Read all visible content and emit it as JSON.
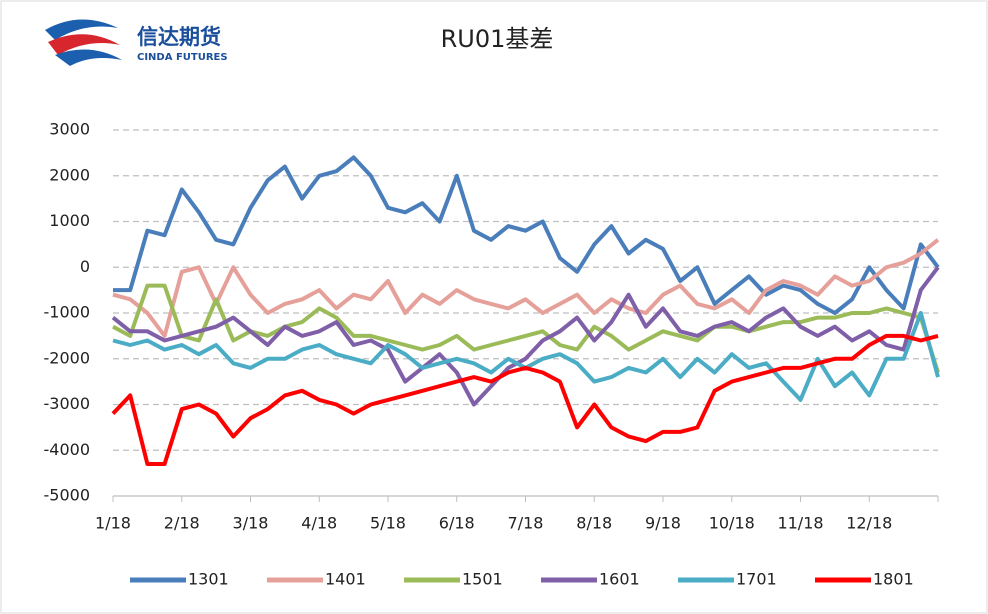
{
  "logo": {
    "name": "信达期货",
    "english": "CINDA FUTURES"
  },
  "chart_data": {
    "type": "line",
    "title": "RU01基差",
    "categories": [
      "1/18",
      null,
      null,
      null,
      "2/18",
      null,
      null,
      null,
      "3/18",
      null,
      null,
      null,
      "4/18",
      null,
      null,
      null,
      "5/18",
      null,
      null,
      null,
      "6/18",
      null,
      null,
      null,
      "7/18",
      null,
      null,
      null,
      "8/18",
      null,
      null,
      null,
      "9/18",
      null,
      null,
      null,
      "10/18",
      null,
      null,
      null,
      "11/18",
      null,
      null,
      null,
      "12/18",
      null,
      null,
      null,
      null
    ],
    "ylim": [
      -5000,
      3000
    ],
    "yticks": [
      -5000,
      -4000,
      -3000,
      -2000,
      -1000,
      0,
      1000,
      2000,
      3000
    ],
    "grid": true,
    "legend": "bottom",
    "series": [
      {
        "name": "1301",
        "color": "#4a7ebb",
        "values": [
          -500,
          -500,
          800,
          700,
          1700,
          1200,
          600,
          500,
          1300,
          1900,
          2200,
          1500,
          2000,
          2100,
          2400,
          2000,
          1300,
          1200,
          1400,
          1000,
          2000,
          800,
          600,
          900,
          800,
          1000,
          200,
          -100,
          500,
          900,
          300,
          600,
          400,
          -300,
          0,
          -800,
          -500,
          -200,
          -600,
          -400,
          -500,
          -800,
          -1000,
          -700,
          0,
          -500,
          -900,
          500,
          0
        ]
      },
      {
        "name": "1401",
        "color": "#e6a09a",
        "values": [
          -600,
          -700,
          -1000,
          -1500,
          -100,
          0,
          -800,
          0,
          -600,
          -1000,
          -800,
          -700,
          -500,
          -900,
          -600,
          -700,
          -300,
          -1000,
          -600,
          -800,
          -500,
          -700,
          -800,
          -900,
          -700,
          -1000,
          -800,
          -600,
          -1000,
          -700,
          -900,
          -1000,
          -600,
          -400,
          -800,
          -900,
          -700,
          -1000,
          -500,
          -300,
          -400,
          -600,
          -200,
          -400,
          -300,
          0,
          100,
          300,
          600
        ]
      },
      {
        "name": "1501",
        "color": "#9bbb59",
        "values": [
          -1300,
          -1500,
          -400,
          -400,
          -1500,
          -1600,
          -700,
          -1600,
          -1400,
          -1500,
          -1300,
          -1200,
          -900,
          -1100,
          -1500,
          -1500,
          -1600,
          -1700,
          -1800,
          -1700,
          -1500,
          -1800,
          -1700,
          -1600,
          -1500,
          -1400,
          -1700,
          -1800,
          -1300,
          -1500,
          -1800,
          -1600,
          -1400,
          -1500,
          -1600,
          -1300,
          -1300,
          -1400,
          -1300,
          -1200,
          -1200,
          -1100,
          -1100,
          -1000,
          -1000,
          -900,
          -1000,
          -1100,
          -2300
        ]
      },
      {
        "name": "1601",
        "color": "#7f5fa8",
        "values": [
          -1100,
          -1400,
          -1400,
          -1600,
          -1500,
          -1400,
          -1300,
          -1100,
          -1400,
          -1700,
          -1300,
          -1500,
          -1400,
          -1200,
          -1700,
          -1600,
          -1800,
          -2500,
          -2200,
          -1900,
          -2300,
          -3000,
          -2600,
          -2200,
          -2000,
          -1600,
          -1400,
          -1100,
          -1600,
          -1200,
          -600,
          -1300,
          -900,
          -1400,
          -1500,
          -1300,
          -1200,
          -1400,
          -1100,
          -900,
          -1300,
          -1500,
          -1300,
          -1600,
          -1400,
          -1700,
          -1800,
          -500,
          0
        ]
      },
      {
        "name": "1701",
        "color": "#4bacc6",
        "values": [
          -1600,
          -1700,
          -1600,
          -1800,
          -1700,
          -1900,
          -1700,
          -2100,
          -2200,
          -2000,
          -2000,
          -1800,
          -1700,
          -1900,
          -2000,
          -2100,
          -1700,
          -1900,
          -2200,
          -2100,
          -2000,
          -2100,
          -2300,
          -2000,
          -2200,
          -2000,
          -1900,
          -2100,
          -2500,
          -2400,
          -2200,
          -2300,
          -2000,
          -2400,
          -2000,
          -2300,
          -1900,
          -2200,
          -2100,
          -2500,
          -2900,
          -2000,
          -2600,
          -2300,
          -2800,
          -2000,
          -2000,
          -1000,
          -2400
        ]
      },
      {
        "name": "1801",
        "color": "#ff0000",
        "values": [
          -3200,
          -2800,
          -4300,
          -4300,
          -3100,
          -3000,
          -3200,
          -3700,
          -3300,
          -3100,
          -2800,
          -2700,
          -2900,
          -3000,
          -3200,
          -3000,
          -2900,
          -2800,
          -2700,
          -2600,
          -2500,
          -2400,
          -2500,
          -2300,
          -2200,
          -2300,
          -2500,
          -3500,
          -3000,
          -3500,
          -3700,
          -3800,
          -3600,
          -3600,
          -3500,
          -2700,
          -2500,
          -2400,
          -2300,
          -2200,
          -2200,
          -2100,
          -2000,
          -2000,
          -1700,
          -1500,
          -1500,
          -1600,
          -1500
        ]
      }
    ]
  }
}
